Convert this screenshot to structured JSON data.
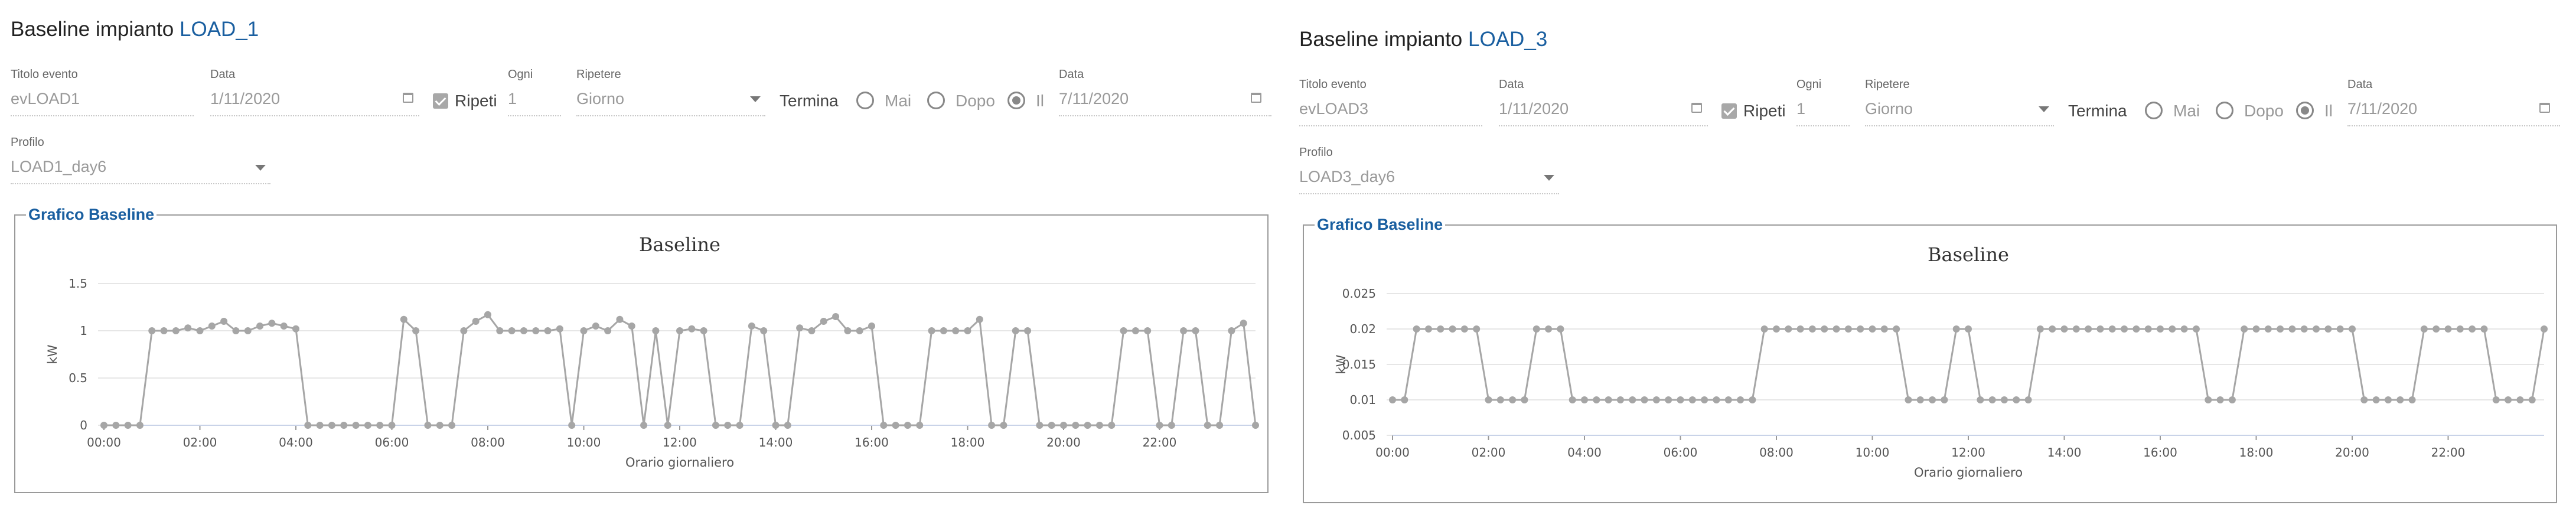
{
  "panels": [
    {
      "title_prefix": "Baseline impianto",
      "title_load": "LOAD_1",
      "event": {
        "label": "Titolo evento",
        "value": "evLOAD1"
      },
      "start": {
        "label": "Data",
        "value": "1/11/2020"
      },
      "repeat": {
        "label": "Ripeti",
        "checked": true
      },
      "every": {
        "label": "Ogni",
        "value": "1"
      },
      "repeat_unit": {
        "label": "Ripetere",
        "value": "Giorno"
      },
      "ends": {
        "label": "Termina",
        "options": [
          "Mai",
          "Dopo",
          "Il"
        ],
        "selected": "Il"
      },
      "end_date": {
        "label": "Data",
        "value": "7/11/2020"
      },
      "profile": {
        "label": "Profilo",
        "value": "LOAD1_day6"
      },
      "fieldset_legend": "Grafico Baseline"
    },
    {
      "title_prefix": "Baseline impianto",
      "title_load": "LOAD_3",
      "event": {
        "label": "Titolo evento",
        "value": "evLOAD3"
      },
      "start": {
        "label": "Data",
        "value": "1/11/2020"
      },
      "repeat": {
        "label": "Ripeti",
        "checked": true
      },
      "every": {
        "label": "Ogni",
        "value": "1"
      },
      "repeat_unit": {
        "label": "Ripetere",
        "value": "Giorno"
      },
      "ends": {
        "label": "Termina",
        "options": [
          "Mai",
          "Dopo",
          "Il"
        ],
        "selected": "Il"
      },
      "end_date": {
        "label": "Data",
        "value": "7/11/2020"
      },
      "profile": {
        "label": "Profilo",
        "value": "LOAD3_day6"
      },
      "fieldset_legend": "Grafico Baseline"
    }
  ],
  "icons": {
    "calendar": "calendar-icon",
    "dropdown": "caret-down-icon",
    "checkbox": "check-icon"
  },
  "colors": {
    "accent": "#1a5fa0",
    "series": "#a6a6a6",
    "gridline": "#e6e6e6"
  },
  "chart_data": [
    {
      "type": "line",
      "title": "Baseline",
      "xlabel": "Orario giornaliero",
      "ylabel": "kW",
      "ylim": [
        0,
        1.5
      ],
      "y_ticks": [
        "0",
        "0.5",
        "1",
        "1.5"
      ],
      "x_ticks": [
        "00:00",
        "02:00",
        "04:00",
        "06:00",
        "08:00",
        "10:00",
        "12:00",
        "14:00",
        "16:00",
        "18:00",
        "20:00",
        "22:00"
      ],
      "x_interval_minutes": 15,
      "series": [
        {
          "values": [
            0,
            0,
            0,
            0,
            1,
            1,
            1,
            1.03,
            1,
            1.05,
            1.1,
            1,
            1,
            1.05,
            1.08,
            1.05,
            1.02,
            0,
            0,
            0,
            0,
            0,
            0,
            0,
            0,
            1.12,
            1,
            0,
            0,
            0,
            1,
            1.1,
            1.17,
            1,
            1,
            1,
            1,
            1,
            1.02,
            0,
            1,
            1.05,
            1,
            1.12,
            1.05,
            0,
            1,
            0,
            1,
            1.02,
            1,
            0,
            0,
            0,
            1.05,
            1,
            0,
            0,
            1.03,
            1,
            1.1,
            1.15,
            1,
            1,
            1.05,
            0,
            0,
            0,
            0,
            1,
            1,
            1,
            1,
            1.12,
            0,
            0,
            1,
            1,
            0,
            0,
            0,
            0,
            0,
            0,
            0,
            1,
            1,
            1,
            0,
            0,
            1,
            1,
            0,
            0,
            1,
            1.08,
            0
          ]
        }
      ]
    },
    {
      "type": "line",
      "title": "Baseline",
      "xlabel": "Orario giornaliero",
      "ylabel": "kW",
      "ylim": [
        0.005,
        0.025
      ],
      "y_ticks": [
        "0.005",
        "0.01",
        "0.015",
        "0.02",
        "0.025"
      ],
      "x_ticks": [
        "00:00",
        "02:00",
        "04:00",
        "06:00",
        "08:00",
        "10:00",
        "12:00",
        "14:00",
        "16:00",
        "18:00",
        "20:00",
        "22:00"
      ],
      "x_interval_minutes": 15,
      "series": [
        {
          "values": [
            0.01,
            0.01,
            0.02,
            0.02,
            0.02,
            0.02,
            0.02,
            0.02,
            0.01,
            0.01,
            0.01,
            0.01,
            0.02,
            0.02,
            0.02,
            0.01,
            0.01,
            0.01,
            0.01,
            0.01,
            0.01,
            0.01,
            0.01,
            0.01,
            0.01,
            0.01,
            0.01,
            0.01,
            0.01,
            0.01,
            0.01,
            0.02,
            0.02,
            0.02,
            0.02,
            0.02,
            0.02,
            0.02,
            0.02,
            0.02,
            0.02,
            0.02,
            0.02,
            0.01,
            0.01,
            0.01,
            0.01,
            0.02,
            0.02,
            0.01,
            0.01,
            0.01,
            0.01,
            0.01,
            0.02,
            0.02,
            0.02,
            0.02,
            0.02,
            0.02,
            0.02,
            0.02,
            0.02,
            0.02,
            0.02,
            0.02,
            0.02,
            0.02,
            0.01,
            0.01,
            0.01,
            0.02,
            0.02,
            0.02,
            0.02,
            0.02,
            0.02,
            0.02,
            0.02,
            0.02,
            0.02,
            0.01,
            0.01,
            0.01,
            0.01,
            0.01,
            0.02,
            0.02,
            0.02,
            0.02,
            0.02,
            0.02,
            0.01,
            0.01,
            0.01,
            0.01,
            0.02
          ]
        }
      ]
    }
  ]
}
